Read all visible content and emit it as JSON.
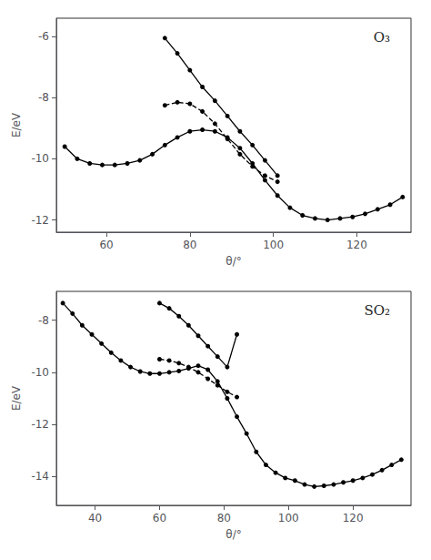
{
  "chart_data": [
    {
      "type": "line",
      "annotation": "O₃",
      "xlabel": "θ/°",
      "ylabel": "E/eV",
      "xlim": [
        48,
        133
      ],
      "ylim": [
        -12.4,
        -5.4
      ],
      "xticks": [
        60,
        80,
        100,
        120
      ],
      "yticks": [
        -12,
        -10,
        -8,
        -6
      ],
      "grid": false,
      "color": "black",
      "series": [
        {
          "marker": "circle",
          "line_style": "solid",
          "x": [
            50,
            53,
            56,
            59,
            62,
            65,
            68,
            71,
            74,
            77,
            80,
            83,
            86,
            89,
            92,
            95,
            98,
            101,
            104,
            107,
            110,
            113,
            116,
            119,
            122,
            125,
            128,
            131
          ],
          "values": [
            -9.6,
            -10.0,
            -10.15,
            -10.2,
            -10.2,
            -10.15,
            -10.05,
            -9.85,
            -9.55,
            -9.3,
            -9.1,
            -9.05,
            -9.1,
            -9.3,
            -9.65,
            -10.15,
            -10.7,
            -11.2,
            -11.6,
            -11.85,
            -11.95,
            -12.0,
            -11.95,
            -11.9,
            -11.8,
            -11.65,
            -11.5,
            -11.25
          ]
        },
        {
          "marker": "circle",
          "line_style": "solid",
          "x": [
            74,
            77,
            80,
            83,
            86,
            89,
            92,
            95,
            98,
            101
          ],
          "values": [
            -6.05,
            -6.55,
            -7.1,
            -7.65,
            -8.1,
            -8.6,
            -9.1,
            -9.55,
            -10.05,
            -10.55
          ]
        },
        {
          "marker": "circle",
          "line_style": "dashed",
          "x": [
            74,
            77,
            80,
            83,
            86,
            89,
            92,
            95,
            98,
            101
          ],
          "values": [
            -8.25,
            -8.15,
            -8.2,
            -8.45,
            -8.85,
            -9.35,
            -9.85,
            -10.25,
            -10.55,
            -10.75
          ]
        }
      ]
    },
    {
      "type": "line",
      "annotation": "SO₂",
      "xlabel": "θ/°",
      "ylabel": "E/eV",
      "xlim": [
        28,
        138
      ],
      "ylim": [
        -15.1,
        -6.9
      ],
      "xticks": [
        40,
        60,
        80,
        100,
        120
      ],
      "yticks": [
        -14,
        -12,
        -10,
        -8
      ],
      "grid": false,
      "color": "black",
      "series": [
        {
          "marker": "circle",
          "line_style": "solid",
          "x": [
            30,
            33,
            36,
            39,
            42,
            45,
            48,
            51,
            54,
            57,
            60,
            63,
            66,
            69,
            72,
            75,
            78,
            81,
            84,
            87,
            90,
            93,
            96,
            99,
            102,
            105,
            108,
            111,
            114,
            117,
            120,
            123,
            126,
            129,
            132,
            135
          ],
          "values": [
            -7.35,
            -7.75,
            -8.2,
            -8.55,
            -8.9,
            -9.25,
            -9.55,
            -9.8,
            -9.97,
            -10.05,
            -10.05,
            -10.0,
            -9.95,
            -9.85,
            -9.75,
            -9.9,
            -10.35,
            -11.0,
            -11.7,
            -12.35,
            -13.05,
            -13.55,
            -13.85,
            -14.05,
            -14.15,
            -14.3,
            -14.38,
            -14.35,
            -14.3,
            -14.22,
            -14.15,
            -14.05,
            -13.92,
            -13.75,
            -13.55,
            -13.35
          ]
        },
        {
          "marker": "circle",
          "line_style": "solid",
          "x": [
            60,
            63,
            66,
            69,
            72,
            75,
            78,
            81,
            84
          ],
          "values": [
            -7.35,
            -7.55,
            -7.85,
            -8.2,
            -8.6,
            -9.0,
            -9.4,
            -9.8,
            -8.55
          ]
        },
        {
          "marker": "circle",
          "line_style": "dashed",
          "x": [
            60,
            63,
            66,
            69,
            72,
            75,
            78,
            81,
            84
          ],
          "values": [
            -9.5,
            -9.55,
            -9.65,
            -9.8,
            -10.0,
            -10.25,
            -10.5,
            -10.75,
            -10.95
          ]
        }
      ]
    }
  ]
}
